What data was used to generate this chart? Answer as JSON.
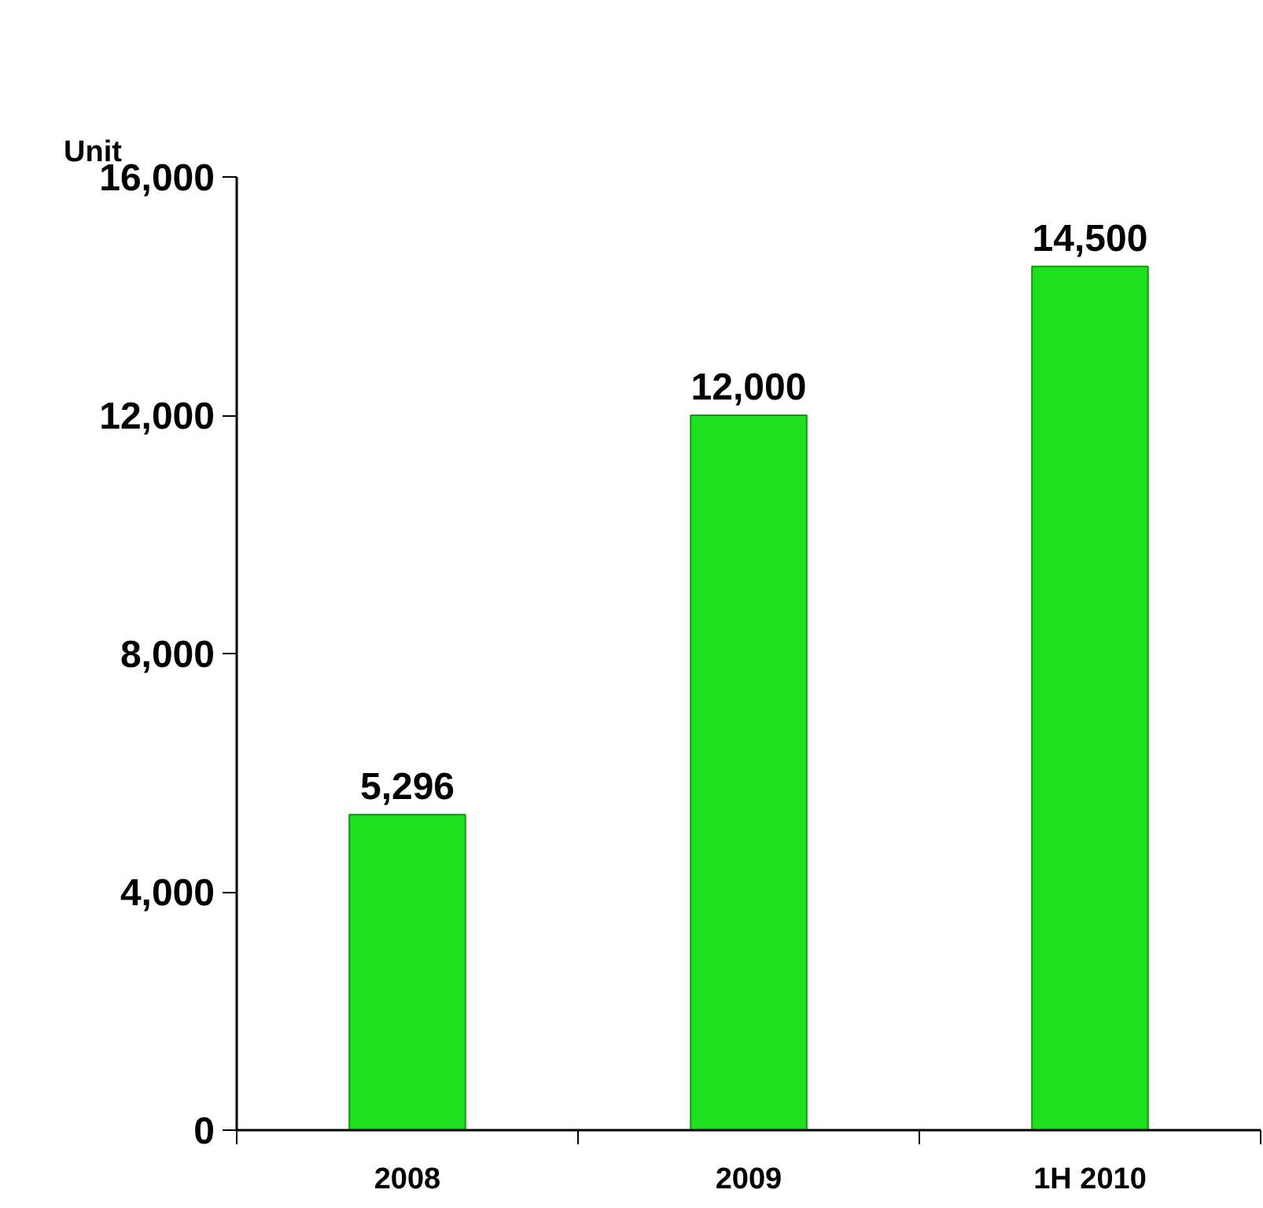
{
  "chart_data": {
    "type": "bar",
    "ylabel": "Unit",
    "categories": [
      "2008",
      "2009",
      "1H 2010"
    ],
    "values": [
      5296,
      12000,
      14500
    ],
    "value_labels": [
      "5,296",
      "12,000",
      "14,500"
    ],
    "color": "#1ee01e",
    "ylim": [
      0,
      16000
    ],
    "yticks": [
      0,
      {
        "value": 4000,
        "label": "4,000"
      },
      {
        "value": 8000,
        "label": "8,000"
      },
      {
        "value": 12000,
        "label": "12,000"
      },
      {
        "value": 16000,
        "label": "16,000"
      }
    ],
    "grid": false
  }
}
